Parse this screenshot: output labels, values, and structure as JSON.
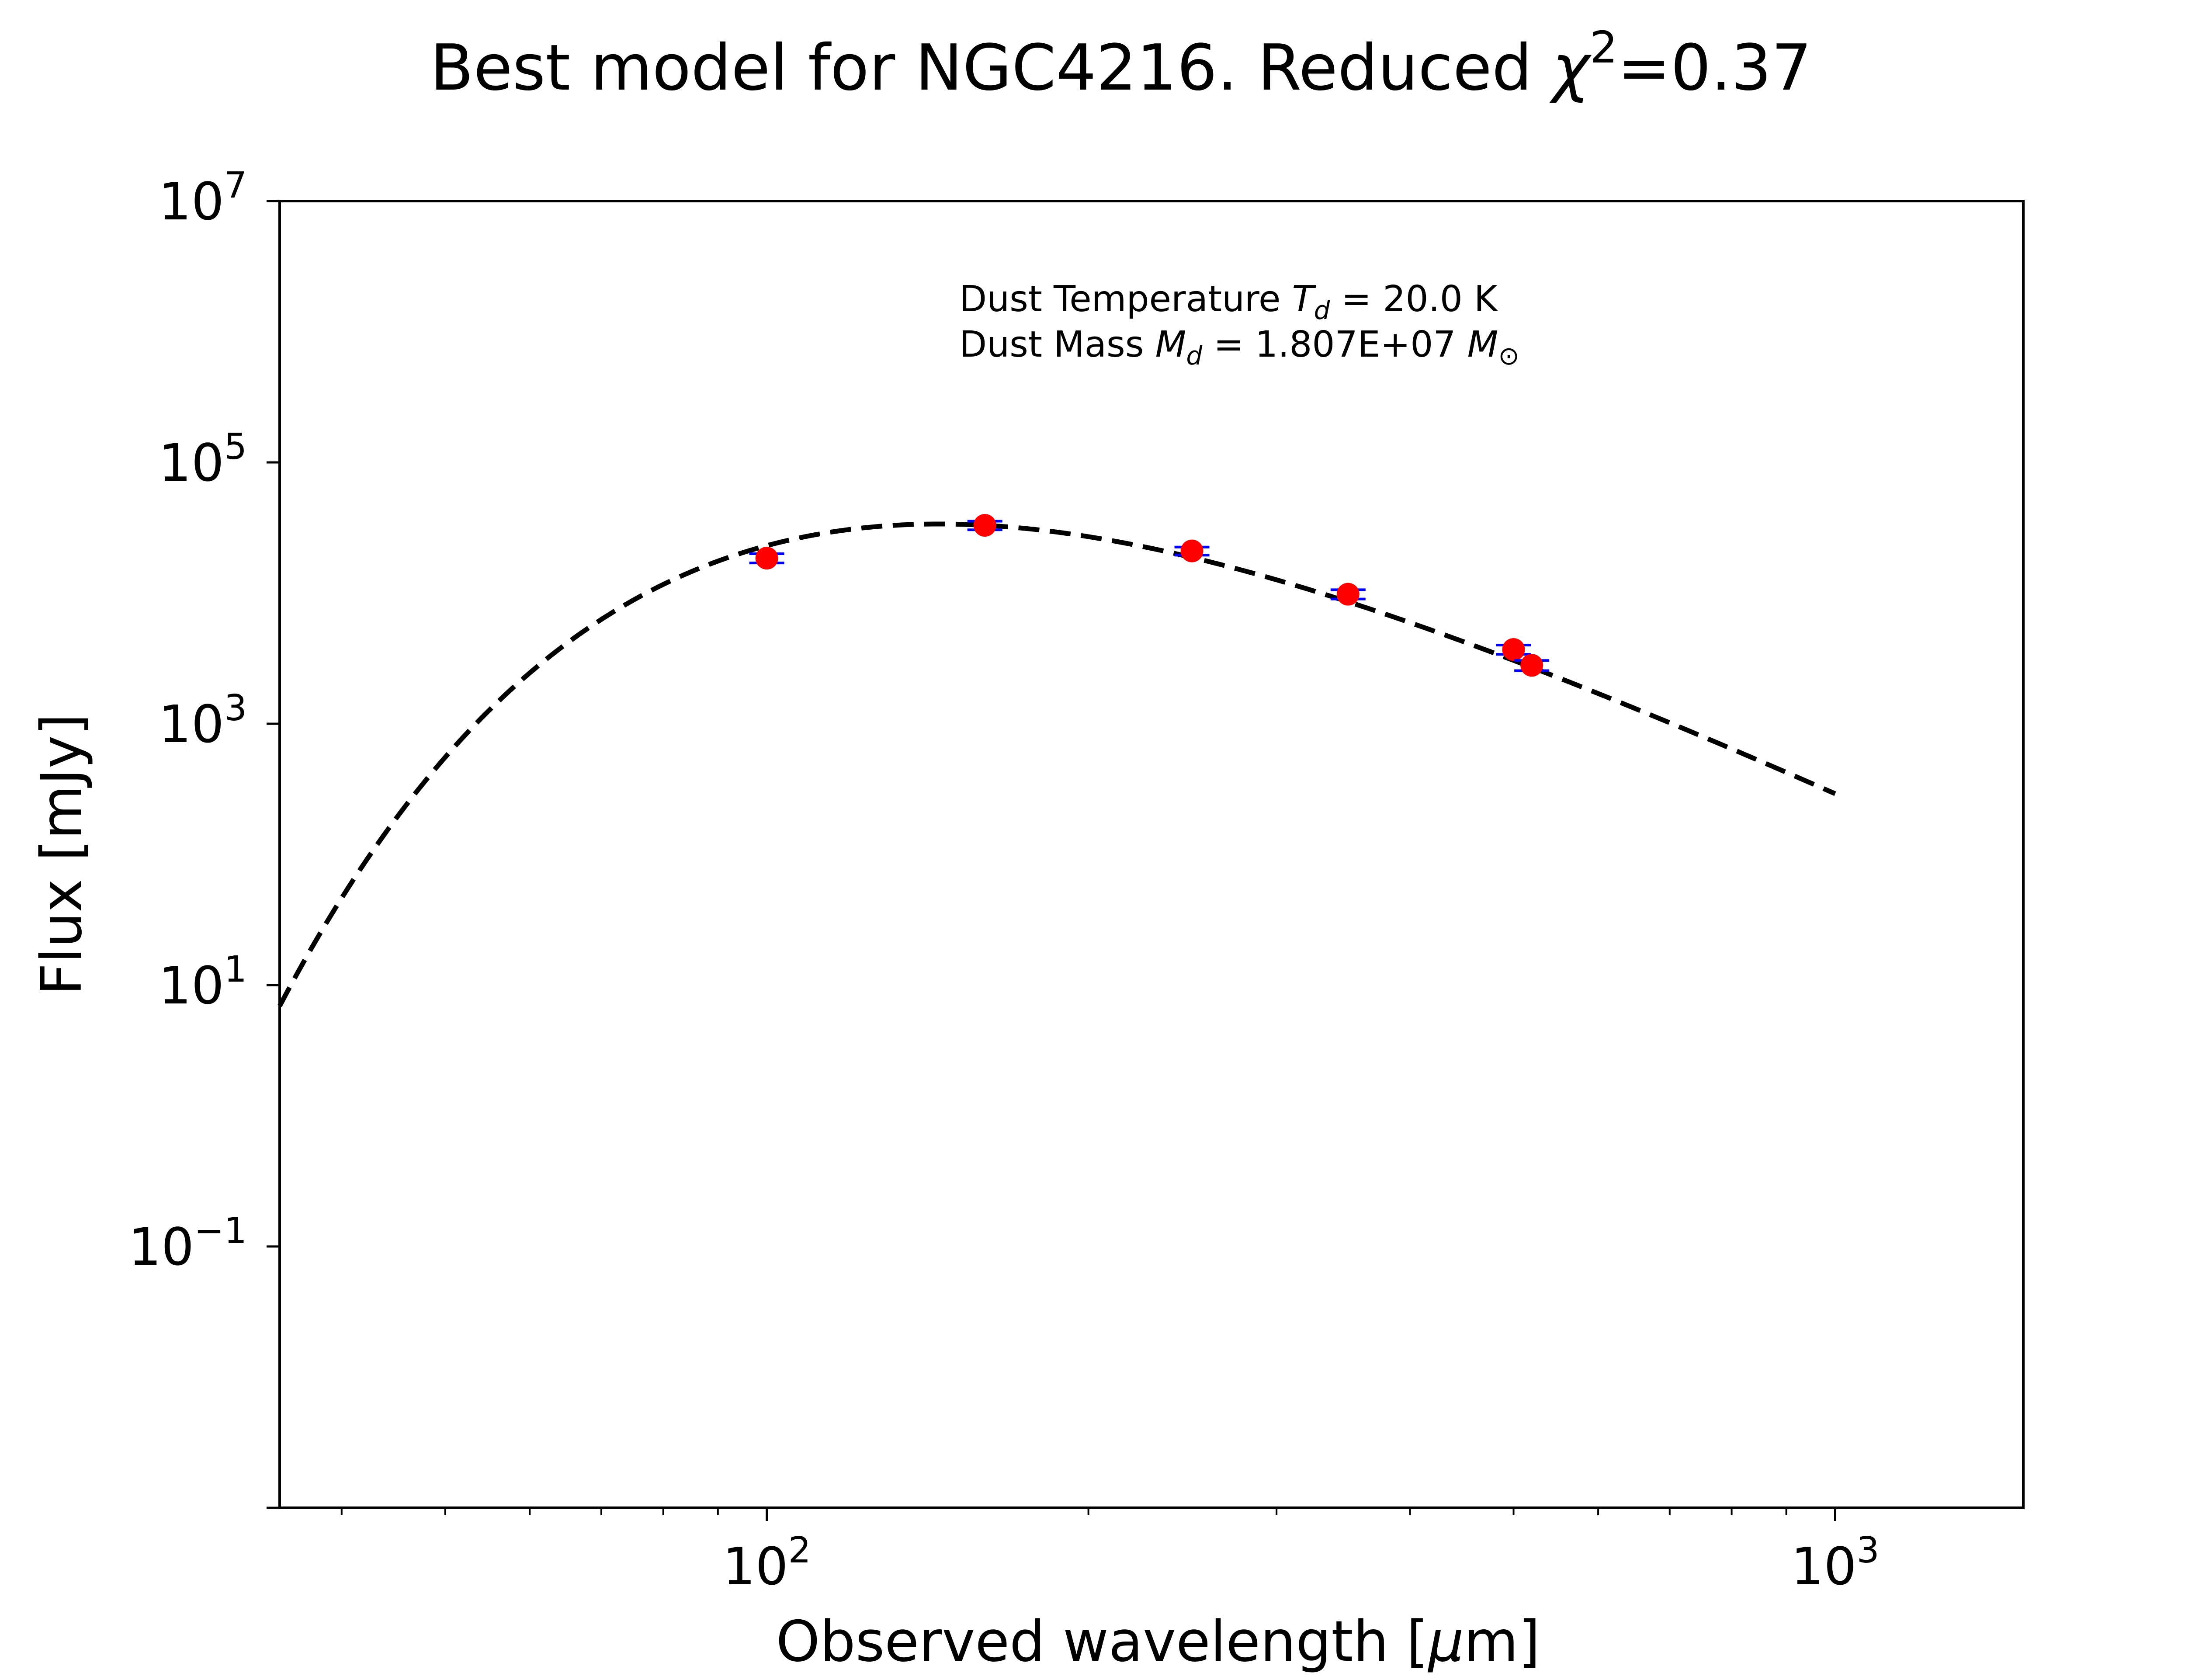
{
  "chart_data": {
    "type": "scatter",
    "title": {
      "main": "Best model for NGC4216. Reduced ",
      "chi_symbol": "χ",
      "chi_superscript": "2",
      "value_text": "=0.37"
    },
    "xlabel": {
      "main": "Observed wavelength [",
      "mu": "μ",
      "unit_tail": "m]"
    },
    "ylabel": "Flux [mJy]",
    "x_scale": "log",
    "y_scale": "log",
    "xlim": [
      35,
      1500
    ],
    "ylim": [
      0.001,
      10000000
    ],
    "x_ticks": [
      {
        "value": 100,
        "base": "10",
        "exp": "2"
      },
      {
        "value": 1000,
        "base": "10",
        "exp": "3"
      }
    ],
    "x_minor_ticks": [
      40,
      50,
      60,
      70,
      80,
      90,
      200,
      300,
      400,
      500,
      600,
      700,
      800,
      900
    ],
    "y_ticks": [
      {
        "value": 0.1,
        "base": "10",
        "exp": "−1"
      },
      {
        "value": 10,
        "base": "10",
        "exp": "1"
      },
      {
        "value": 1000,
        "base": "10",
        "exp": "3"
      },
      {
        "value": 100000,
        "base": "10",
        "exp": "5"
      },
      {
        "value": 10000000,
        "base": "10",
        "exp": "7"
      }
    ],
    "grid": false,
    "annotation": {
      "line1_prefix": "Dust Temperature ",
      "line1_var": "T",
      "line1_sub": "d",
      "line1_value": " = 20.0 K",
      "line2_prefix": "Dust Mass ",
      "line2_var": "M",
      "line2_sub": "d",
      "line2_value": " = 1.807E+07 ",
      "line2_unit_var": "M",
      "line2_unit_sub": "⊙"
    },
    "series": [
      {
        "kind": "model",
        "style": "dashed",
        "color": "#000000",
        "T_dust": 20.0,
        "beta": 2.0,
        "norm_lambda": 160,
        "norm_flux": 33000,
        "x_range": [
          35,
          1000
        ]
      },
      {
        "kind": "observed",
        "marker_color": "#ff0000",
        "errorbar_color": "#0000ff",
        "points": [
          {
            "x": 100,
            "y": 18500,
            "yerr": 1500
          },
          {
            "x": 160,
            "y": 33000,
            "yerr": 2500
          },
          {
            "x": 250,
            "y": 21000,
            "yerr": 1500
          },
          {
            "x": 350,
            "y": 9800,
            "yerr": 800
          },
          {
            "x": 500,
            "y": 3700,
            "yerr": 300
          },
          {
            "x": 520,
            "y": 2800,
            "yerr": 250
          }
        ]
      }
    ]
  }
}
